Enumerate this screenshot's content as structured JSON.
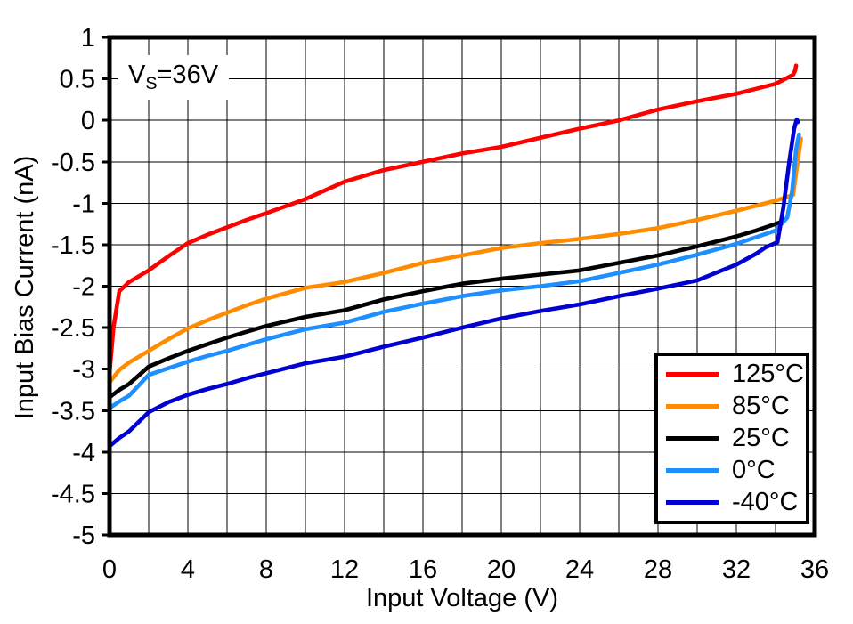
{
  "figure": {
    "annotation": {
      "prefix": "V",
      "sub": "S",
      "rest": "=36V"
    }
  },
  "chart_data": {
    "type": "line",
    "title": "",
    "xlabel": "Input Voltage (V)",
    "ylabel": "Input Bias Current (nA)",
    "annotation": "Vs=36V",
    "xlim": [
      0,
      36
    ],
    "ylim": [
      -5,
      1
    ],
    "grid": true,
    "x_grid_step": 2,
    "y_grid_step": 0.5,
    "x_ticks": [
      "0",
      "4",
      "8",
      "12",
      "16",
      "20",
      "24",
      "28",
      "32",
      "36"
    ],
    "y_ticks": [
      "1",
      "0.5",
      "0",
      "-0.5",
      "-1",
      "-1.5",
      "-2",
      "-2.5",
      "-3",
      "-3.5",
      "-4",
      "-4.5",
      "-5"
    ],
    "legend_position": "bottom-right",
    "series": [
      {
        "name": "125°C",
        "color": "#ff0000",
        "points": [
          [
            0,
            -3.05
          ],
          [
            0.2,
            -2.5
          ],
          [
            0.5,
            -2.06
          ],
          [
            1,
            -1.95
          ],
          [
            2,
            -1.81
          ],
          [
            3,
            -1.64
          ],
          [
            4,
            -1.48
          ],
          [
            5,
            -1.38
          ],
          [
            6,
            -1.29
          ],
          [
            7,
            -1.2
          ],
          [
            8,
            -1.12
          ],
          [
            10,
            -0.95
          ],
          [
            12,
            -0.74
          ],
          [
            14,
            -0.6
          ],
          [
            16,
            -0.5
          ],
          [
            18,
            -0.4
          ],
          [
            20,
            -0.32
          ],
          [
            22,
            -0.21
          ],
          [
            24,
            -0.1
          ],
          [
            26,
            0.0
          ],
          [
            28,
            0.13
          ],
          [
            30,
            0.23
          ],
          [
            32,
            0.32
          ],
          [
            33,
            0.38
          ],
          [
            34,
            0.44
          ],
          [
            34.5,
            0.5
          ],
          [
            34.9,
            0.55
          ],
          [
            35.0,
            0.6
          ],
          [
            35.05,
            0.66
          ]
        ]
      },
      {
        "name": "85°C",
        "color": "#ff8c00",
        "points": [
          [
            0,
            -3.16
          ],
          [
            0.5,
            -3.01
          ],
          [
            1,
            -2.92
          ],
          [
            2,
            -2.78
          ],
          [
            3,
            -2.64
          ],
          [
            4,
            -2.51
          ],
          [
            5,
            -2.41
          ],
          [
            6,
            -2.32
          ],
          [
            7,
            -2.23
          ],
          [
            8,
            -2.15
          ],
          [
            10,
            -2.02
          ],
          [
            12,
            -1.95
          ],
          [
            14,
            -1.84
          ],
          [
            16,
            -1.72
          ],
          [
            18,
            -1.63
          ],
          [
            20,
            -1.54
          ],
          [
            22,
            -1.48
          ],
          [
            24,
            -1.43
          ],
          [
            26,
            -1.37
          ],
          [
            28,
            -1.3
          ],
          [
            30,
            -1.2
          ],
          [
            32,
            -1.09
          ],
          [
            33,
            -1.03
          ],
          [
            34,
            -0.97
          ],
          [
            34.9,
            -0.9
          ],
          [
            35.1,
            -0.55
          ],
          [
            35.3,
            -0.22
          ]
        ]
      },
      {
        "name": "25°C",
        "color": "#000000",
        "points": [
          [
            0,
            -3.34
          ],
          [
            0.5,
            -3.25
          ],
          [
            1,
            -3.18
          ],
          [
            2,
            -2.97
          ],
          [
            3,
            -2.87
          ],
          [
            4,
            -2.78
          ],
          [
            5,
            -2.7
          ],
          [
            6,
            -2.62
          ],
          [
            7,
            -2.55
          ],
          [
            8,
            -2.48
          ],
          [
            10,
            -2.37
          ],
          [
            12,
            -2.29
          ],
          [
            14,
            -2.16
          ],
          [
            16,
            -2.06
          ],
          [
            18,
            -1.97
          ],
          [
            20,
            -1.91
          ],
          [
            22,
            -1.86
          ],
          [
            24,
            -1.81
          ],
          [
            26,
            -1.72
          ],
          [
            28,
            -1.63
          ],
          [
            30,
            -1.52
          ],
          [
            32,
            -1.4
          ],
          [
            33,
            -1.33
          ],
          [
            34,
            -1.25
          ],
          [
            34.45,
            -1.21
          ]
        ]
      },
      {
        "name": "0°C",
        "color": "#1e8fff",
        "points": [
          [
            0,
            -3.47
          ],
          [
            0.5,
            -3.39
          ],
          [
            1,
            -3.32
          ],
          [
            2,
            -3.07
          ],
          [
            3,
            -2.99
          ],
          [
            4,
            -2.91
          ],
          [
            5,
            -2.84
          ],
          [
            6,
            -2.78
          ],
          [
            7,
            -2.71
          ],
          [
            8,
            -2.64
          ],
          [
            10,
            -2.52
          ],
          [
            12,
            -2.44
          ],
          [
            14,
            -2.31
          ],
          [
            16,
            -2.21
          ],
          [
            18,
            -2.12
          ],
          [
            20,
            -2.05
          ],
          [
            22,
            -2.0
          ],
          [
            24,
            -1.94
          ],
          [
            26,
            -1.84
          ],
          [
            28,
            -1.74
          ],
          [
            30,
            -1.62
          ],
          [
            32,
            -1.49
          ],
          [
            33,
            -1.41
          ],
          [
            34,
            -1.33
          ],
          [
            34.6,
            -1.17
          ],
          [
            34.85,
            -0.85
          ],
          [
            35.05,
            -0.35
          ],
          [
            35.2,
            -0.17
          ]
        ]
      },
      {
        "name": "-40°C",
        "color": "#0000d0",
        "points": [
          [
            0,
            -3.93
          ],
          [
            0.5,
            -3.83
          ],
          [
            1,
            -3.75
          ],
          [
            2,
            -3.52
          ],
          [
            3,
            -3.4
          ],
          [
            4,
            -3.31
          ],
          [
            5,
            -3.24
          ],
          [
            6,
            -3.18
          ],
          [
            7,
            -3.11
          ],
          [
            8,
            -3.05
          ],
          [
            10,
            -2.93
          ],
          [
            12,
            -2.85
          ],
          [
            14,
            -2.73
          ],
          [
            16,
            -2.62
          ],
          [
            18,
            -2.5
          ],
          [
            20,
            -2.39
          ],
          [
            22,
            -2.3
          ],
          [
            24,
            -2.22
          ],
          [
            26,
            -2.12
          ],
          [
            28,
            -2.03
          ],
          [
            30,
            -1.93
          ],
          [
            32,
            -1.74
          ],
          [
            33,
            -1.61
          ],
          [
            33.5,
            -1.53
          ],
          [
            34.1,
            -1.47
          ],
          [
            34.4,
            -1.05
          ],
          [
            34.7,
            -0.5
          ],
          [
            34.95,
            -0.1
          ],
          [
            35.08,
            0.01
          ],
          [
            35.15,
            -0.02
          ]
        ]
      }
    ]
  }
}
